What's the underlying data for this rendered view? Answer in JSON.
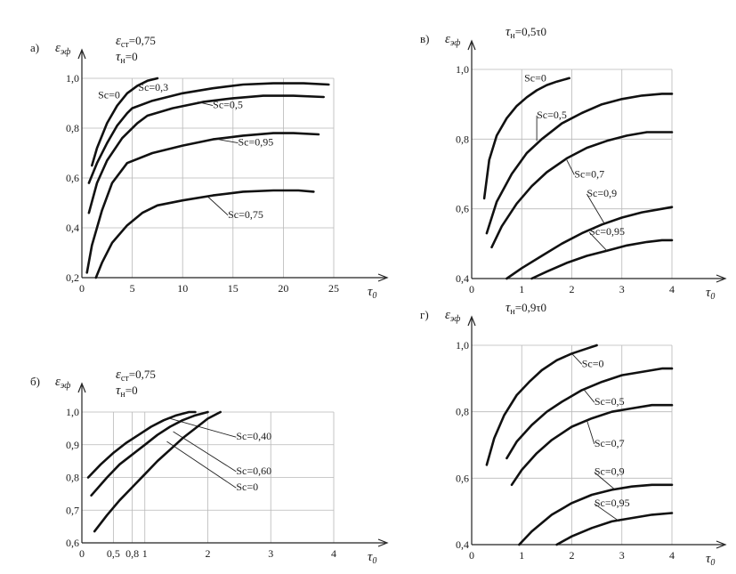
{
  "chart_data": [
    {
      "id": "a",
      "type": "line",
      "panel_letter": "а)",
      "ylabel": "εэф",
      "xlabel": "τ0",
      "conditions": [
        "εcт=0,75",
        "τн=0"
      ],
      "xlim": [
        0,
        25
      ],
      "ylim": [
        0.2,
        1.0
      ],
      "xticks": [
        0,
        5,
        10,
        15,
        20,
        25
      ],
      "yticks": [
        0.2,
        0.4,
        0.6,
        0.8,
        1.0
      ],
      "xtick_labels": [
        "0",
        "5",
        "10",
        "15",
        "20",
        "25"
      ],
      "ytick_labels": [
        "0,2",
        "0,4",
        "0,6",
        "0,8",
        "1,0"
      ],
      "grid": true,
      "series": [
        {
          "name": "Sc=0",
          "x": [
            1.0,
            1.5,
            2.5,
            3.5,
            4.5,
            5.5,
            6.5,
            7.5
          ],
          "y": [
            0.65,
            0.72,
            0.82,
            0.89,
            0.94,
            0.97,
            0.99,
            1.0
          ],
          "label_x": 1.6,
          "label_y": 0.92,
          "leader": false
        },
        {
          "name": "Sc=0,3",
          "x": [
            0.7,
            1.5,
            2.5,
            3.5,
            4.5,
            5.0,
            7.0,
            10.0,
            13.0,
            16.0,
            19.0,
            22.0,
            24.5
          ],
          "y": [
            0.58,
            0.66,
            0.74,
            0.81,
            0.86,
            0.88,
            0.91,
            0.94,
            0.96,
            0.975,
            0.98,
            0.98,
            0.975
          ],
          "label_x": 5.6,
          "label_y": 0.95,
          "leader": false
        },
        {
          "name": "Sc=0,5",
          "x": [
            0.7,
            1.5,
            2.5,
            4.0,
            5.5,
            6.5,
            9.0,
            12.0,
            15.0,
            18.0,
            21.0,
            24.0
          ],
          "y": [
            0.46,
            0.58,
            0.67,
            0.76,
            0.82,
            0.85,
            0.88,
            0.905,
            0.92,
            0.93,
            0.93,
            0.925
          ],
          "label_x": 13.0,
          "label_y": 0.88,
          "leader": true,
          "leader_x": 11.5,
          "leader_y": 0.905
        },
        {
          "name": "Sc=0,95",
          "x": [
            0.5,
            1.0,
            2.0,
            3.0,
            4.5,
            7.0,
            10.0,
            13.0,
            16.0,
            19.0,
            21.0,
            23.5
          ],
          "y": [
            0.22,
            0.33,
            0.47,
            0.58,
            0.66,
            0.7,
            0.73,
            0.755,
            0.77,
            0.78,
            0.78,
            0.775
          ],
          "label_x": 15.5,
          "label_y": 0.73,
          "leader": true,
          "leader_x": 13.5,
          "leader_y": 0.755
        },
        {
          "name": "Sc=0,75",
          "x": [
            1.4,
            2.0,
            3.0,
            4.5,
            6.0,
            7.5,
            10.0,
            13.0,
            16.0,
            19.0,
            21.5,
            23.0
          ],
          "y": [
            0.2,
            0.26,
            0.34,
            0.41,
            0.46,
            0.49,
            0.51,
            0.53,
            0.545,
            0.55,
            0.55,
            0.545
          ],
          "label_x": 14.5,
          "label_y": 0.44,
          "leader": true,
          "leader_x": 12.5,
          "leader_y": 0.525
        }
      ]
    },
    {
      "id": "b",
      "type": "line",
      "panel_letter": "б)",
      "ylabel": "εэф",
      "xlabel": "τ0",
      "conditions": [
        "εcт=0,75",
        "τн=0"
      ],
      "xlim": [
        0,
        4
      ],
      "ylim": [
        0.6,
        1.0
      ],
      "xticks": [
        0,
        0.5,
        0.8,
        1,
        2,
        3,
        4
      ],
      "yticks": [
        0.6,
        0.7,
        0.8,
        0.9,
        1.0
      ],
      "xtick_labels": [
        "0",
        "0,5",
        "0,8",
        "1",
        "2",
        "3",
        "4"
      ],
      "ytick_labels": [
        "0,6",
        "0,7",
        "0,8",
        "0,9",
        "1,0"
      ],
      "grid": true,
      "series": [
        {
          "name": "Sc=0,40",
          "x": [
            0.1,
            0.3,
            0.5,
            0.7,
            0.9,
            1.1,
            1.3,
            1.5,
            1.7,
            1.8
          ],
          "y": [
            0.8,
            0.84,
            0.875,
            0.905,
            0.93,
            0.955,
            0.975,
            0.99,
            1.0,
            1.0
          ],
          "label_x": 2.45,
          "label_y": 0.915,
          "leader": true,
          "leader_x": 1.4,
          "leader_y": 0.98
        },
        {
          "name": "Sc=0,60",
          "x": [
            0.15,
            0.4,
            0.6,
            0.8,
            1.0,
            1.2,
            1.4,
            1.6,
            1.8,
            2.0
          ],
          "y": [
            0.745,
            0.8,
            0.84,
            0.87,
            0.9,
            0.93,
            0.955,
            0.975,
            0.99,
            1.0
          ],
          "label_x": 2.45,
          "label_y": 0.81,
          "leader": true,
          "leader_x": 1.45,
          "leader_y": 0.94
        },
        {
          "name": "Sc=0",
          "x": [
            0.2,
            0.4,
            0.6,
            0.8,
            1.0,
            1.2,
            1.4,
            1.6,
            1.8,
            2.0,
            2.2
          ],
          "y": [
            0.635,
            0.685,
            0.73,
            0.77,
            0.81,
            0.85,
            0.885,
            0.92,
            0.95,
            0.98,
            1.0
          ],
          "label_x": 2.45,
          "label_y": 0.76,
          "leader": true,
          "leader_x": 1.35,
          "leader_y": 0.91
        }
      ]
    },
    {
      "id": "v",
      "type": "line",
      "panel_letter": "в)",
      "ylabel": "εэф",
      "xlabel": "τ0",
      "conditions": [
        "τн=0,5τ0"
      ],
      "xlim": [
        0,
        4
      ],
      "ylim": [
        0.4,
        1.0
      ],
      "xticks": [
        0,
        1,
        2,
        3,
        4
      ],
      "yticks": [
        0.4,
        0.6,
        0.8,
        1.0
      ],
      "xtick_labels": [
        "0",
        "1",
        "2",
        "3",
        "4"
      ],
      "ytick_labels": [
        "0,4",
        "0,6",
        "0,8",
        "1,0"
      ],
      "grid": true,
      "series": [
        {
          "name": "Sc=0",
          "x": [
            0.25,
            0.35,
            0.5,
            0.7,
            0.9,
            1.1,
            1.3,
            1.5,
            1.7,
            1.95
          ],
          "y": [
            0.63,
            0.74,
            0.81,
            0.86,
            0.895,
            0.92,
            0.94,
            0.955,
            0.965,
            0.975
          ],
          "label_x": 1.05,
          "label_y": 0.965,
          "leader": false
        },
        {
          "name": "Sc=0,5",
          "x": [
            0.3,
            0.5,
            0.8,
            1.1,
            1.4,
            1.8,
            2.2,
            2.6,
            3.0,
            3.4,
            3.8,
            4.0
          ],
          "y": [
            0.53,
            0.62,
            0.7,
            0.76,
            0.8,
            0.845,
            0.875,
            0.9,
            0.915,
            0.925,
            0.93,
            0.93
          ],
          "label_x": 1.3,
          "label_y": 0.86,
          "leader": true,
          "leader_x": 1.3,
          "leader_y": 0.795
        },
        {
          "name": "Sc=0,7",
          "x": [
            0.4,
            0.6,
            0.9,
            1.2,
            1.5,
            1.9,
            2.3,
            2.7,
            3.1,
            3.5,
            3.8,
            4.0
          ],
          "y": [
            0.49,
            0.55,
            0.615,
            0.665,
            0.705,
            0.745,
            0.775,
            0.795,
            0.81,
            0.82,
            0.82,
            0.82
          ],
          "label_x": 2.05,
          "label_y": 0.69,
          "leader": true,
          "leader_x": 1.9,
          "leader_y": 0.74
        },
        {
          "name": "Sc=0,9",
          "x": [
            0.7,
            1.0,
            1.4,
            1.8,
            2.2,
            2.6,
            3.0,
            3.4,
            3.8,
            4.0
          ],
          "y": [
            0.4,
            0.43,
            0.465,
            0.5,
            0.53,
            0.555,
            0.575,
            0.59,
            0.6,
            0.605
          ],
          "label_x": 2.3,
          "label_y": 0.635,
          "leader": true,
          "leader_x": 2.65,
          "leader_y": 0.558
        },
        {
          "name": "Sc=0,95",
          "x": [
            1.2,
            1.5,
            1.9,
            2.3,
            2.7,
            3.1,
            3.5,
            3.8,
            4.0
          ],
          "y": [
            0.4,
            0.42,
            0.445,
            0.465,
            0.48,
            0.495,
            0.505,
            0.51,
            0.51
          ],
          "label_x": 2.35,
          "label_y": 0.525,
          "leader": true,
          "leader_x": 2.7,
          "leader_y": 0.48
        }
      ]
    },
    {
      "id": "g",
      "type": "line",
      "panel_letter": "г)",
      "ylabel": "εэф",
      "xlabel": "τ0",
      "conditions": [
        "τн=0,9τ0"
      ],
      "xlim": [
        0,
        4
      ],
      "ylim": [
        0.4,
        1.0
      ],
      "xticks": [
        0,
        1,
        2,
        3,
        4
      ],
      "yticks": [
        0.4,
        0.6,
        0.8,
        1.0
      ],
      "xtick_labels": [
        "0",
        "1",
        "2",
        "3",
        "4"
      ],
      "ytick_labels": [
        "0,4",
        "0,6",
        "0,8",
        "1,0"
      ],
      "grid": true,
      "series": [
        {
          "name": "Sc=0",
          "x": [
            0.3,
            0.45,
            0.65,
            0.9,
            1.15,
            1.4,
            1.7,
            2.0,
            2.3,
            2.5
          ],
          "y": [
            0.64,
            0.72,
            0.79,
            0.85,
            0.89,
            0.925,
            0.955,
            0.975,
            0.99,
            1.0
          ],
          "label_x": 2.2,
          "label_y": 0.935,
          "leader": true,
          "leader_x": 2.0,
          "leader_y": 0.975
        },
        {
          "name": "Sc=0,5",
          "x": [
            0.7,
            0.9,
            1.2,
            1.5,
            1.8,
            2.2,
            2.6,
            3.0,
            3.4,
            3.8,
            4.0
          ],
          "y": [
            0.66,
            0.71,
            0.76,
            0.8,
            0.83,
            0.865,
            0.89,
            0.91,
            0.92,
            0.93,
            0.93
          ],
          "label_x": 2.45,
          "label_y": 0.82,
          "leader": true,
          "leader_x": 2.25,
          "leader_y": 0.865
        },
        {
          "name": "Sc=0,7",
          "x": [
            0.8,
            1.0,
            1.3,
            1.6,
            2.0,
            2.4,
            2.8,
            3.2,
            3.6,
            4.0
          ],
          "y": [
            0.58,
            0.625,
            0.675,
            0.715,
            0.755,
            0.78,
            0.8,
            0.81,
            0.82,
            0.82
          ],
          "label_x": 2.45,
          "label_y": 0.695,
          "leader": true,
          "leader_x": 2.3,
          "leader_y": 0.775
        },
        {
          "name": "Sc=0,9",
          "x": [
            0.95,
            1.2,
            1.6,
            2.0,
            2.4,
            2.8,
            3.2,
            3.6,
            4.0
          ],
          "y": [
            0.4,
            0.44,
            0.49,
            0.525,
            0.55,
            0.565,
            0.575,
            0.58,
            0.58
          ],
          "label_x": 2.45,
          "label_y": 0.61,
          "leader": true,
          "leader_x": 2.85,
          "leader_y": 0.567
        },
        {
          "name": "Sc=0,95",
          "x": [
            1.7,
            2.0,
            2.4,
            2.8,
            3.2,
            3.6,
            4.0
          ],
          "y": [
            0.4,
            0.425,
            0.45,
            0.47,
            0.48,
            0.49,
            0.495
          ],
          "label_x": 2.45,
          "label_y": 0.515,
          "leader": true,
          "leader_x": 2.95,
          "leader_y": 0.47
        }
      ]
    }
  ]
}
